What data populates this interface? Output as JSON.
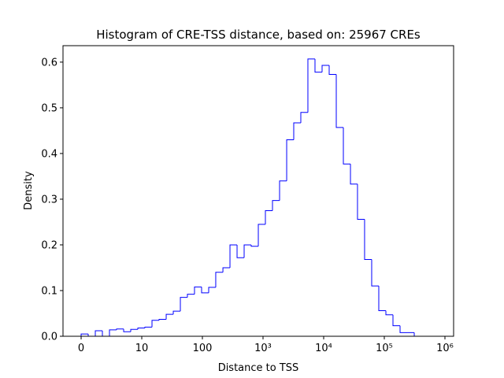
{
  "chart_data": {
    "type": "step-histogram",
    "title": "Histogram of CRE-TSS distance, based on: 25967 CREs",
    "x_label": "Distance to TSS",
    "y_label": "Density",
    "color": "#0000ff",
    "xscale": "symlog",
    "linthresh": 10,
    "bins": [
      0,
      1.169,
      2.338,
      3.506,
      4.675,
      5.844,
      7.013,
      8.182,
      9.351,
      11.27,
      14.75,
      19.31,
      25.29,
      33.1,
      43.3,
      56.6,
      74.1,
      97,
      127,
      166,
      218,
      285,
      373,
      488,
      638,
      836,
      1094,
      1432,
      1875,
      2455,
      3209,
      4199,
      5495,
      7194,
      9419,
      12330,
      16140,
      21130,
      27670,
      36140,
      47320,
      61940,
      81100,
      106200,
      139000,
      182000,
      238200,
      311900,
      408300,
      533300,
      698200
    ],
    "values": [
      0.005,
      0,
      0.012,
      0,
      0.014,
      0.016,
      0.01,
      0.015,
      0.018,
      0.02,
      0.035,
      0.037,
      0.048,
      0.055,
      0.085,
      0.092,
      0.108,
      0.095,
      0.107,
      0.14,
      0.15,
      0.2,
      0.172,
      0.2,
      0.197,
      0.245,
      0.275,
      0.297,
      0.34,
      0.43,
      0.467,
      0.49,
      0.607,
      0.578,
      0.593,
      0.573,
      0.457,
      0.377,
      0.333,
      0.256,
      0.168,
      0.11,
      0.056,
      0.047,
      0.023,
      0.008,
      0.008,
      0,
      0,
      0
    ],
    "xlim": [
      -2.99,
      1390000
    ],
    "xticks": [
      0,
      10,
      100,
      {
        "value": 1000,
        "label": "10³"
      },
      {
        "value": 10000,
        "label": "10⁴"
      },
      {
        "value": 100000,
        "label": "10⁵"
      },
      {
        "value": 1000000,
        "label": "10⁶"
      }
    ],
    "ylim": [
      0,
      0.636
    ],
    "yticks": [
      {
        "value": 0,
        "label": "0.0"
      },
      0.1,
      0.2,
      0.3,
      0.4,
      0.5,
      0.6
    ]
  }
}
